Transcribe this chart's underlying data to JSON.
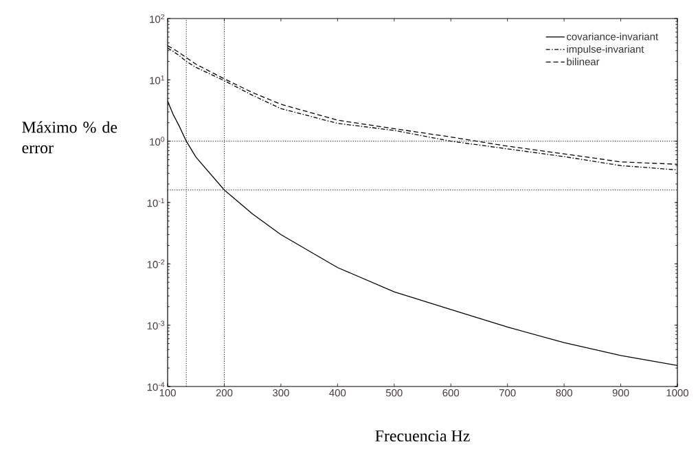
{
  "chart_data": {
    "type": "line",
    "xlabel": "Frecuencia Hz",
    "ylabel": "Máximo % de error",
    "log": "y",
    "xlim": [
      100,
      1000
    ],
    "ylim": [
      0.0001,
      100
    ],
    "xticks": [
      100,
      200,
      300,
      400,
      500,
      600,
      700,
      800,
      900,
      1000
    ],
    "yticks": [
      {
        "value": 0.0001,
        "label": "10$^{-4}$"
      },
      {
        "value": 0.001,
        "label": "10$^{-3}$"
      },
      {
        "value": 0.01,
        "label": "10$^{-2}$"
      },
      {
        "value": 0.1,
        "label": "10$^{-1}$"
      },
      {
        "value": 1,
        "label": "10$^{0}$"
      },
      {
        "value": 10,
        "label": "10$^{1}$"
      },
      {
        "value": 100,
        "label": "10$^{2}$"
      }
    ],
    "x": [
      100,
      110,
      120,
      133,
      150,
      200,
      250,
      300,
      400,
      500,
      600,
      700,
      800,
      900,
      1000
    ],
    "series": [
      {
        "name": "covariance-invariant",
        "color": "#000000",
        "line_style": "solid",
        "values": [
          4.5,
          2.7,
          1.8,
          1.0,
          0.55,
          0.16,
          0.065,
          0.03,
          0.0087,
          0.0035,
          0.0018,
          0.00093,
          0.00052,
          0.00032,
          0.00022
        ]
      },
      {
        "name": "impulse-invariant",
        "color": "#000000",
        "line_style": "dashdot",
        "values": [
          33,
          29,
          25,
          20,
          16,
          9.7,
          5.6,
          3.4,
          1.95,
          1.5,
          1.0,
          0.75,
          0.56,
          0.4,
          0.34
        ]
      },
      {
        "name": "bilinear",
        "color": "#000000",
        "line_style": "dashed",
        "values": [
          36,
          32,
          28,
          23,
          18,
          10.4,
          6.2,
          4.0,
          2.2,
          1.6,
          1.17,
          0.83,
          0.62,
          0.46,
          0.42
        ]
      }
    ],
    "ref_lines": [
      {
        "axis": "x",
        "value": 133,
        "color": "#000000",
        "line_style": "dotted"
      },
      {
        "axis": "x",
        "value": 200,
        "color": "#000000",
        "line_style": "dotted"
      },
      {
        "axis": "y",
        "value": 1,
        "color": "#000000",
        "line_style": "dotted"
      },
      {
        "axis": "y",
        "value": 0.16,
        "color": "#000000",
        "line_style": "dotted"
      }
    ],
    "legend": "top right",
    "grid": false,
    "marker": "none"
  }
}
